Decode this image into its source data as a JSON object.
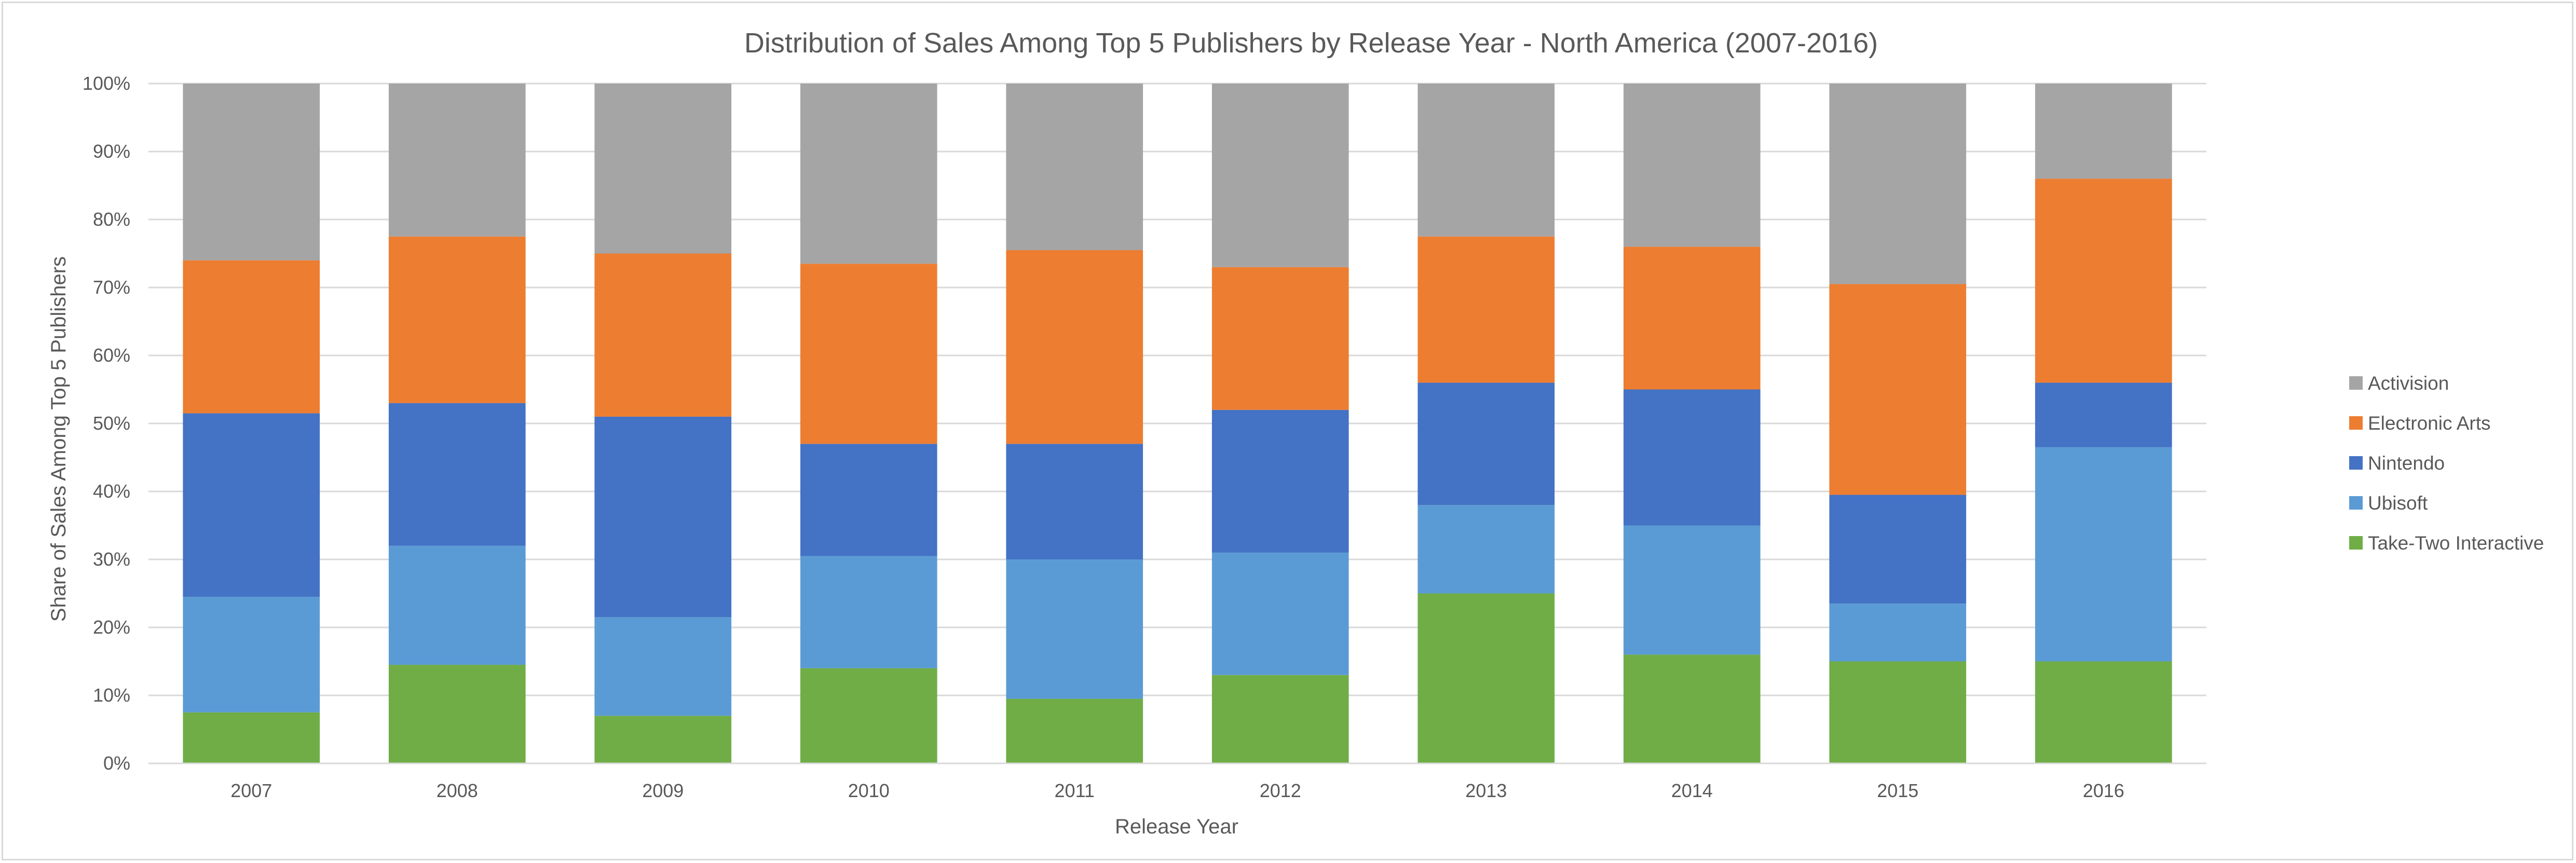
{
  "chart_data": {
    "type": "bar",
    "stacked": "percent",
    "title": "Distribution of Sales Among Top 5 Publishers by Release Year - North America (2007-2016)",
    "xlabel": "Release Year",
    "ylabel": "Share of Sales Among Top 5 Publishers",
    "ylim": [
      0,
      100
    ],
    "yticks": [
      "0%",
      "10%",
      "20%",
      "30%",
      "40%",
      "50%",
      "60%",
      "70%",
      "80%",
      "90%",
      "100%"
    ],
    "categories": [
      "2007",
      "2008",
      "2009",
      "2010",
      "2011",
      "2012",
      "2013",
      "2014",
      "2015",
      "2016"
    ],
    "grid": true,
    "legend_position": "right",
    "series": [
      {
        "name": "Take-Two Interactive",
        "color": "#70ad47",
        "values": [
          7.5,
          14.5,
          7.0,
          14.0,
          9.5,
          13.0,
          25.0,
          16.0,
          15.0,
          15.0
        ]
      },
      {
        "name": "Ubisoft",
        "color": "#5b9bd5",
        "values": [
          17.0,
          17.5,
          14.5,
          16.5,
          20.5,
          18.0,
          13.0,
          19.0,
          8.5,
          31.5
        ]
      },
      {
        "name": "Nintendo",
        "color": "#4472c4",
        "values": [
          27.0,
          21.0,
          29.5,
          16.5,
          17.0,
          21.0,
          18.0,
          20.0,
          16.0,
          9.5
        ]
      },
      {
        "name": "Electronic Arts",
        "color": "#ed7d31",
        "values": [
          22.5,
          24.5,
          24.0,
          26.5,
          28.5,
          21.0,
          21.5,
          21.0,
          31.0,
          30.0
        ]
      },
      {
        "name": "Activision",
        "color": "#a5a5a5",
        "values": [
          26.0,
          22.5,
          25.0,
          26.5,
          24.5,
          27.0,
          22.5,
          24.0,
          29.5,
          14.0
        ]
      }
    ]
  }
}
